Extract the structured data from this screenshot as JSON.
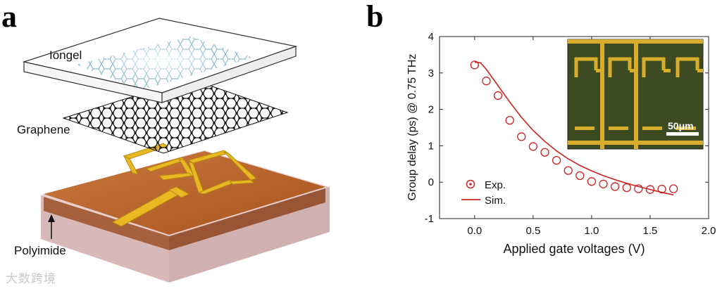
{
  "panels": {
    "a": "a",
    "b": "b"
  },
  "diagram": {
    "iongel_label": "Iongel",
    "graphene_label": "Graphene",
    "polyimide_label": "Polyimide",
    "colors": {
      "substrate": "#b8622a",
      "metal": "#e8b923",
      "iongel": "#ffffff",
      "graphene": "#222222"
    }
  },
  "inset": {
    "scale_label": "50μm",
    "colors": {
      "background": "#3e4a22",
      "metal": "#d9ad2c"
    }
  },
  "watermark": "大数跨境",
  "chart_data": {
    "type": "scatter",
    "xlabel": "Applied gate voltages (V)",
    "ylabel": "Group delay (ps) @ 0.75 THz",
    "xlim": [
      -0.3,
      2.0
    ],
    "ylim": [
      -1,
      4
    ],
    "xticks": [
      "0.0",
      "0.5",
      "1.0",
      "1.5",
      "2.0"
    ],
    "xtick_values": [
      0.0,
      0.5,
      1.0,
      1.5,
      2.0
    ],
    "yticks": [
      "-1",
      "0",
      "1",
      "2",
      "3",
      "4"
    ],
    "ytick_values": [
      -1,
      0,
      1,
      2,
      3,
      4
    ],
    "legend_position": "bottom-left",
    "color": "#d02020",
    "series": [
      {
        "name": "Exp.",
        "style": "open-circle",
        "x": [
          0.0,
          0.1,
          0.2,
          0.3,
          0.4,
          0.5,
          0.6,
          0.7,
          0.8,
          0.9,
          1.0,
          1.1,
          1.2,
          1.3,
          1.4,
          1.5,
          1.6,
          1.7
        ],
        "y": [
          3.22,
          2.78,
          2.38,
          1.7,
          1.25,
          0.98,
          0.82,
          0.6,
          0.32,
          0.18,
          0.02,
          -0.05,
          -0.12,
          -0.15,
          -0.18,
          -0.2,
          -0.19,
          -0.18
        ]
      },
      {
        "name": "Sim.",
        "style": "line",
        "x": [
          0.0,
          0.05,
          0.1,
          0.2,
          0.3,
          0.4,
          0.5,
          0.6,
          0.7,
          0.8,
          0.9,
          1.0,
          1.1,
          1.2,
          1.3,
          1.4,
          1.5,
          1.6,
          1.7
        ],
        "y": [
          3.3,
          3.28,
          3.1,
          2.65,
          2.2,
          1.78,
          1.42,
          1.12,
          0.86,
          0.64,
          0.46,
          0.31,
          0.18,
          0.07,
          -0.03,
          -0.12,
          -0.2,
          -0.28,
          -0.35
        ]
      }
    ]
  }
}
